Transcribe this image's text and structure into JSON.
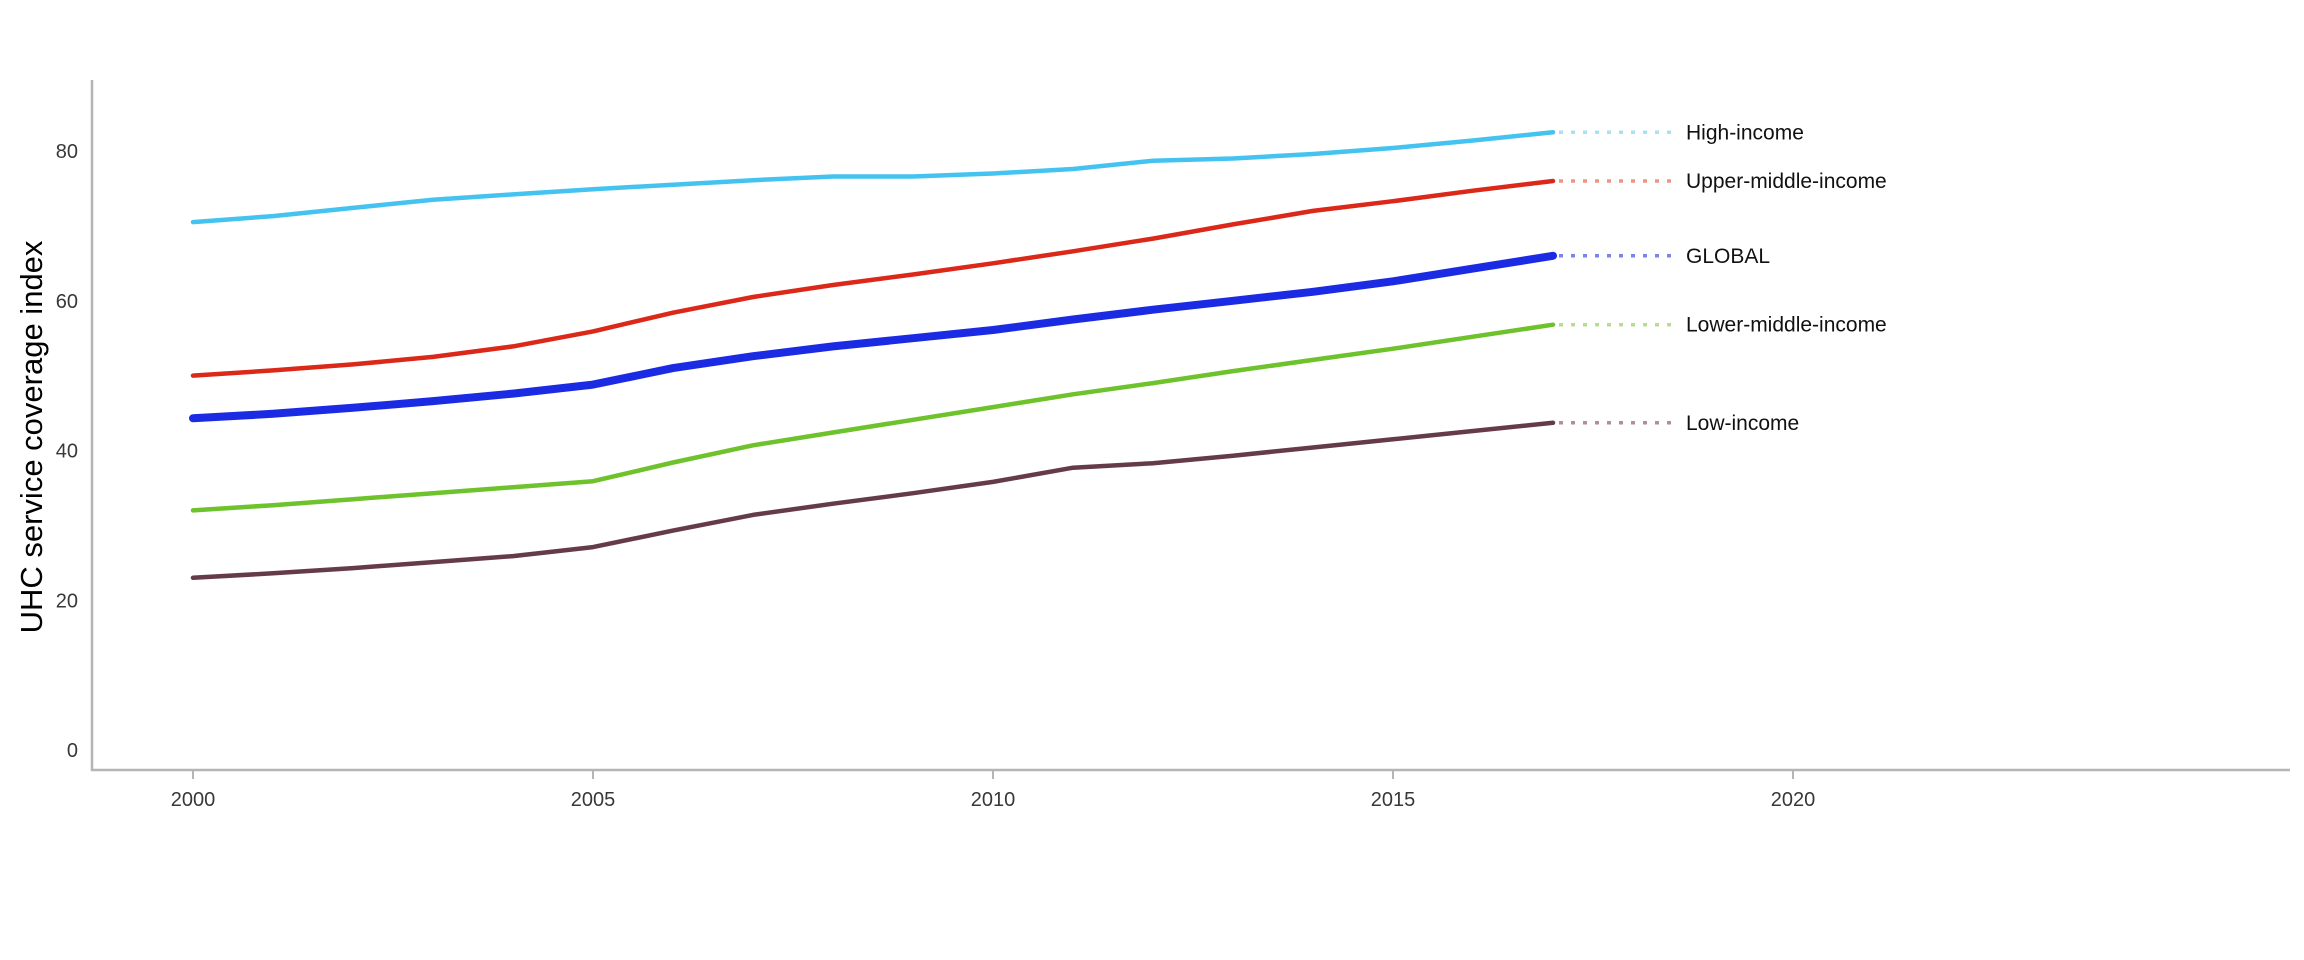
{
  "chart_data": {
    "type": "line",
    "title": "",
    "xlabel": "",
    "ylabel": "UHC service coverage index",
    "grid": false,
    "legend_position": "direct-labels-right",
    "background_color": "#ffffff",
    "axis_color": "#b5b5b5",
    "tick_label_color": "#383838",
    "series_label_color": "#111111",
    "x": [
      2000,
      2001,
      2002,
      2003,
      2004,
      2005,
      2006,
      2007,
      2008,
      2009,
      2010,
      2011,
      2012,
      2013,
      2014,
      2015,
      2016,
      2017
    ],
    "x_ticks": [
      2000,
      2005,
      2010,
      2015,
      2020
    ],
    "y_ticks": [
      0,
      20,
      40,
      60,
      80
    ],
    "ylim": [
      0,
      92
    ],
    "xlim": [
      2000,
      2026
    ],
    "series": [
      {
        "name": "High-income",
        "color": "#45C3F0",
        "leader_color": "#A9E0F7",
        "line_width": 4.5,
        "values": [
          70.5,
          71.3,
          72.4,
          73.5,
          74.2,
          74.9,
          75.5,
          76.1,
          76.6,
          76.6,
          77.0,
          77.6,
          78.7,
          79.0,
          79.6,
          80.4,
          81.4,
          82.5
        ]
      },
      {
        "name": "Upper-middle-income",
        "color": "#DB2818",
        "leader_color": "#F09489",
        "line_width": 4.5,
        "values": [
          50.0,
          50.7,
          51.5,
          52.5,
          53.9,
          55.9,
          58.4,
          60.5,
          62.1,
          63.5,
          65.0,
          66.6,
          68.3,
          70.2,
          72.0,
          73.3,
          74.7,
          76.0
        ]
      },
      {
        "name": "GLOBAL",
        "color": "#1B2BE3",
        "leader_color": "#7886EA",
        "line_width": 8,
        "values": [
          44.3,
          44.9,
          45.7,
          46.6,
          47.6,
          48.8,
          51.0,
          52.6,
          53.9,
          55.0,
          56.1,
          57.5,
          58.8,
          60.0,
          61.2,
          62.6,
          64.3,
          66.0
        ]
      },
      {
        "name": "Lower-middle-income",
        "color": "#6EC22C",
        "leader_color": "#B6DD92",
        "line_width": 4.5,
        "values": [
          32.0,
          32.7,
          33.5,
          34.3,
          35.1,
          35.9,
          38.4,
          40.7,
          42.4,
          44.1,
          45.8,
          47.5,
          49.0,
          50.6,
          52.1,
          53.6,
          55.2,
          56.8
        ]
      },
      {
        "name": "Low-income",
        "color": "#653B4B",
        "leader_color": "#B18E98",
        "line_width": 4.5,
        "values": [
          23.0,
          23.6,
          24.3,
          25.1,
          25.9,
          27.1,
          29.3,
          31.4,
          32.9,
          34.3,
          35.8,
          37.7,
          38.3,
          39.3,
          40.4,
          41.5,
          42.6,
          43.7
        ]
      }
    ]
  }
}
